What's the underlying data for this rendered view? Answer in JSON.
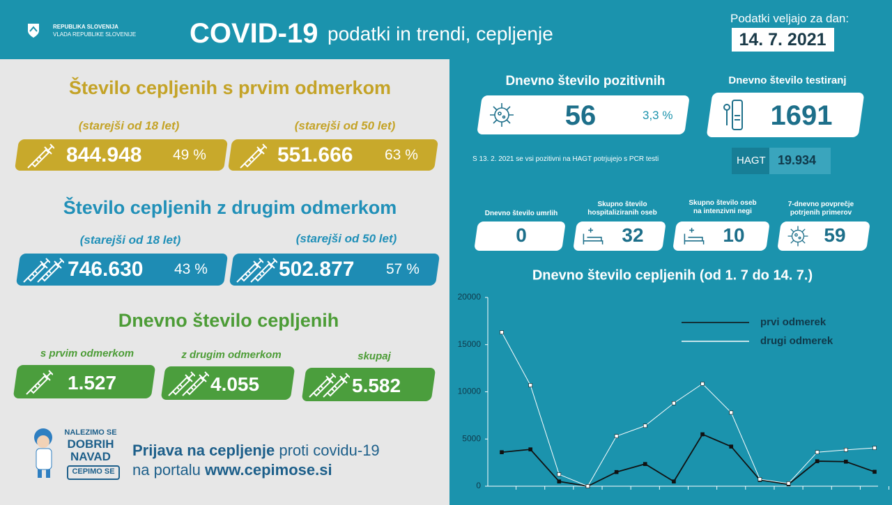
{
  "header": {
    "gov": [
      "REPUBLIKA SLOVENIJA",
      "VLADA REPUBLIKE SLOVENIJE"
    ],
    "title": "COVID-19",
    "subtitle": "podatki in trendi, cepljenje",
    "date_label": "Podatki veljajo za dan:",
    "date": "14. 7. 2021"
  },
  "first_dose": {
    "heading": "Število cepljenih s prvim odmerkom",
    "groups": [
      {
        "label": "(starejši od 18 let)",
        "value": "844.948",
        "percent": "49 %"
      },
      {
        "label": "(starejši od 50 let)",
        "value": "551.666",
        "percent": "63 %"
      }
    ]
  },
  "second_dose": {
    "heading": "Število cepljenih z drugim odmerkom",
    "groups": [
      {
        "label": "(starejši od 18 let)",
        "value": "746.630",
        "percent": "43 %"
      },
      {
        "label": "(starejši od 50 let)",
        "value": "502.877",
        "percent": "57 %"
      }
    ]
  },
  "daily": {
    "heading": "Dnevno število cepljenih",
    "items": [
      {
        "label": "s prvim odmerkom",
        "value": "1.527"
      },
      {
        "label": "z drugim odmerkom",
        "value": "4.055"
      },
      {
        "label": "skupaj",
        "value": "5.582"
      }
    ]
  },
  "promo": {
    "logo": [
      "NALEZIMO SE",
      "DOBRIH",
      "NAVAD",
      "CEPIMO SE"
    ],
    "line1_bold": "Prijava na cepljenje",
    "line1_rest": "proti covidu-19",
    "line2_rest": "na portalu",
    "line2_bold": "www.cepimose.si"
  },
  "positive": {
    "title": "Dnevno število pozitivnih",
    "value": "56",
    "percent": "3,3 %"
  },
  "tests": {
    "title": "Dnevno število testiranj",
    "value": "1691"
  },
  "note": "S 13. 2. 2021 se vsi pozitivni na HAGT potrjujejo s PCR testi",
  "hagt": {
    "label": "HAGT",
    "value": "19.934"
  },
  "stats": [
    {
      "label": [
        "Dnevno število umrlih"
      ],
      "value": "0"
    },
    {
      "label": [
        "Skupno število",
        "hospitaliziranih oseb"
      ],
      "value": "32"
    },
    {
      "label": [
        "Skupno število oseb",
        "na intenzivni negi"
      ],
      "value": "10"
    },
    {
      "label": [
        "7-dnevno povprečje",
        "potrjenih primerov"
      ],
      "value": "59"
    }
  ],
  "chart_data": {
    "type": "line",
    "title": "Dnevno število cepljenih (od 1. 7 do 14. 7.)",
    "categories": [
      null,
      null,
      null,
      null,
      null,
      null,
      null,
      null,
      null,
      null,
      null,
      null,
      null,
      null
    ],
    "series": [
      {
        "name": "prvi odmerek",
        "color": "#111111",
        "values": [
          3600,
          3900,
          500,
          0,
          1500,
          2350,
          500,
          5500,
          4200,
          660,
          200,
          2650,
          2600,
          1527
        ]
      },
      {
        "name": "drugi odmerek",
        "color": "#ffffff",
        "values": [
          16300,
          10700,
          1250,
          0,
          5300,
          6400,
          8800,
          10850,
          7800,
          740,
          300,
          3600,
          3850,
          4055
        ]
      }
    ],
    "ylim": [
      0,
      20000
    ],
    "yticks": [
      0,
      5000,
      10000,
      15000,
      20000
    ],
    "legend": "upper right"
  }
}
